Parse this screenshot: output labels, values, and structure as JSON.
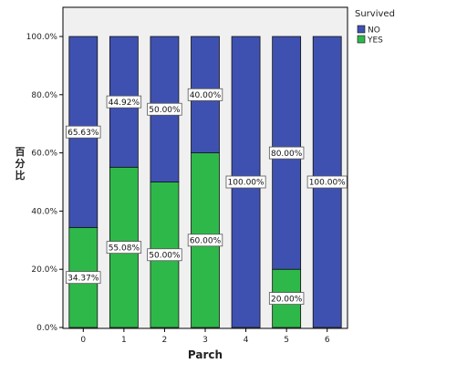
{
  "chart_data": {
    "type": "bar",
    "stacked": true,
    "categories": [
      "0",
      "1",
      "2",
      "3",
      "4",
      "5",
      "6"
    ],
    "series": [
      {
        "name": "NO",
        "color": "#3f51b0",
        "values": [
          65.63,
          44.92,
          50.0,
          40.0,
          100.0,
          80.0,
          100.0
        ],
        "labels": [
          "65.63%",
          "44.92%",
          "50.00%",
          "40.00%",
          "100.00%",
          "80.00%",
          "100.00%"
        ]
      },
      {
        "name": "YES",
        "color": "#2fb84a",
        "values": [
          34.37,
          55.08,
          50.0,
          60.0,
          0,
          20.0,
          0
        ],
        "labels": [
          "34.37%",
          "55.08%",
          "50.00%",
          "60.00%",
          "",
          "20.00%",
          ""
        ]
      }
    ],
    "xlabel": "Parch",
    "ylabel": "百分比",
    "ylim": [
      0,
      100
    ],
    "yticks": [
      "0.0%",
      "20.0%",
      "40.0%",
      "60.0%",
      "80.0%",
      "100.0%"
    ],
    "legend": {
      "title": "Survived",
      "position": "right"
    },
    "grid": false,
    "plot_background": "#f0f0f0"
  }
}
